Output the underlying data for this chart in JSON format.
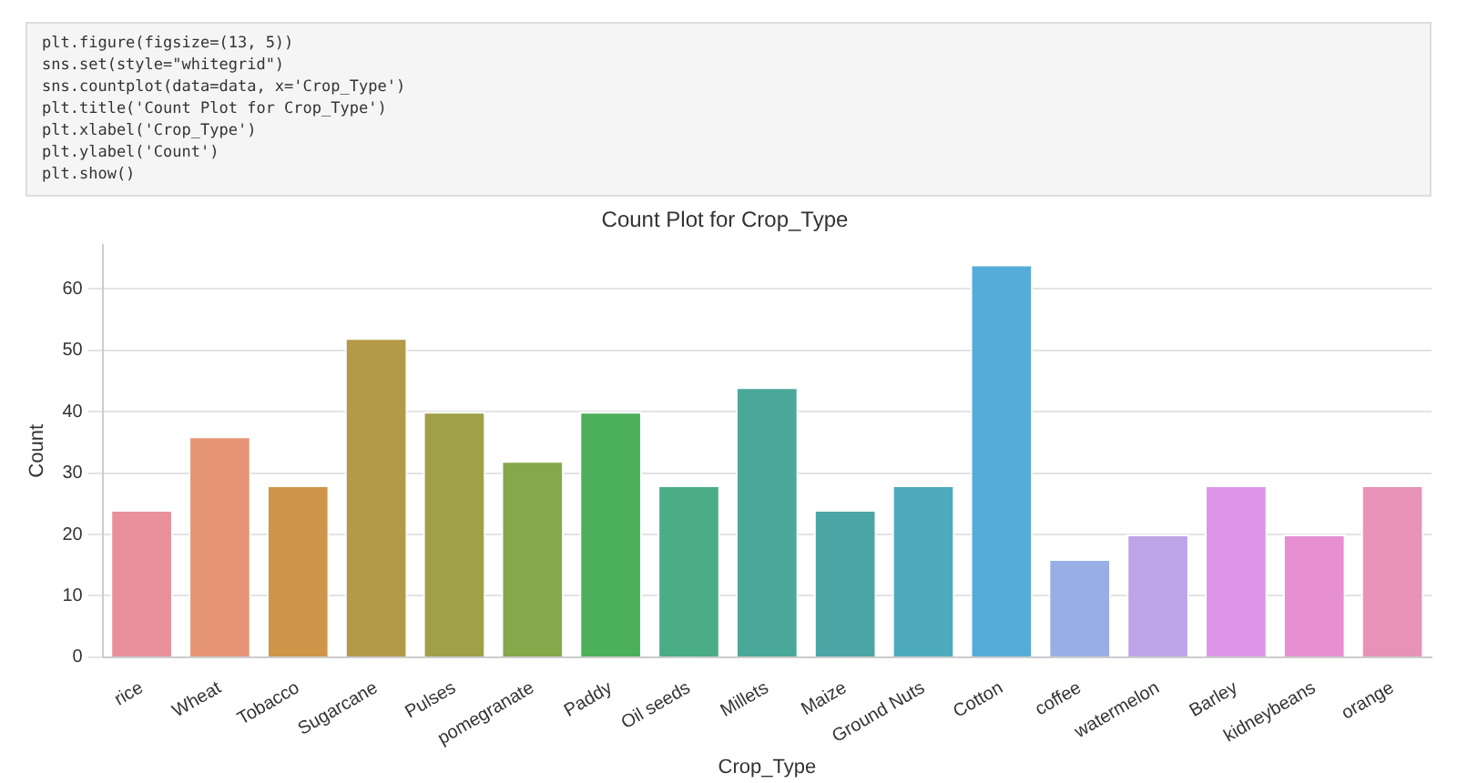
{
  "chart_data": {
    "type": "bar",
    "title": "Count Plot for Crop_Type",
    "xlabel": "Crop_Type",
    "ylabel": "Count",
    "categories": [
      "rice",
      "Wheat",
      "Tobacco",
      "Sugarcane",
      "Pulses",
      "pomegranate",
      "Paddy",
      "Oil seeds",
      "Millets",
      "Maize",
      "Ground Nuts",
      "Cotton",
      "coffee",
      "watermelon",
      "Barley",
      "kidneybeans",
      "orange"
    ],
    "values": [
      24,
      36,
      28,
      52,
      40,
      32,
      40,
      28,
      44,
      24,
      28,
      64,
      16,
      20,
      28,
      20,
      28
    ],
    "colors": [
      "#e8909c",
      "#e59576",
      "#cf9549",
      "#b39a48",
      "#9fa047",
      "#85a84a",
      "#4cb05a",
      "#4aad85",
      "#4aa898",
      "#4ba5a5",
      "#4eabbd",
      "#56acd8",
      "#9aaee6",
      "#bda5e8",
      "#dc95e8",
      "#e690d2",
      "#e992b8"
    ],
    "ylim": [
      0,
      67.2
    ],
    "yticks": [
      0,
      10,
      20,
      30,
      40,
      50,
      60
    ],
    "grid": "y",
    "legend": false,
    "annotations": [
      "plt.figure(figsize=(13, 5))",
      "sns.set(style=\"whitegrid\")",
      "sns.countplot(data=data, x='Crop_Type')",
      "plt.title('Count Plot for Crop_Type')",
      "plt.xlabel('Crop_Type')",
      "plt.ylabel('Count')",
      "plt.show()"
    ]
  }
}
